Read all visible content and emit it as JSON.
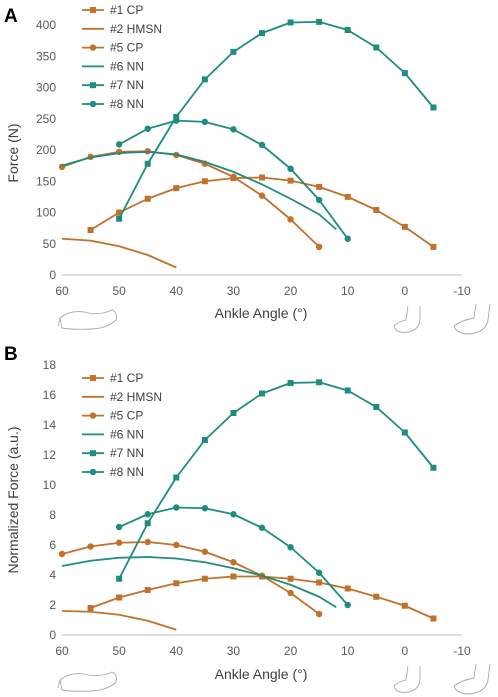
{
  "chart_data": [
    {
      "panel": "A",
      "type": "line",
      "xlabel": "Ankle Angle (°)",
      "ylabel": "Force (N)",
      "xlim": [
        60,
        -10
      ],
      "ylim": [
        0,
        400
      ],
      "xticks": [
        "60",
        "50",
        "40",
        "30",
        "20",
        "10",
        "0",
        "-10"
      ],
      "yticks": [
        "0",
        "50",
        "100",
        "150",
        "200",
        "250",
        "300",
        "350",
        "400"
      ],
      "xtick_values": [
        60,
        50,
        40,
        30,
        20,
        10,
        0,
        -10
      ],
      "ytick_values": [
        0,
        50,
        100,
        150,
        200,
        250,
        300,
        350,
        400
      ],
      "legend_position": "top-left",
      "series": [
        {
          "name": "#1 CP",
          "color": "#C0712C",
          "marker": "square",
          "points": [
            [
              55,
              72
            ],
            [
              50,
              100
            ],
            [
              45,
              122
            ],
            [
              40,
              139
            ],
            [
              35,
              150
            ],
            [
              30,
              155
            ],
            [
              25,
              156
            ],
            [
              20,
              151
            ],
            [
              15,
              141
            ],
            [
              10,
              125
            ],
            [
              5,
              104
            ],
            [
              0,
              77
            ],
            [
              -5,
              45
            ]
          ]
        },
        {
          "name": "#2 HMSN",
          "color": "#C0712C",
          "marker": "none",
          "points": [
            [
              60,
              58
            ],
            [
              55,
              55
            ],
            [
              50,
              46
            ],
            [
              45,
              32
            ],
            [
              40,
              12
            ]
          ]
        },
        {
          "name": "#5 CP",
          "color": "#C0712C",
          "marker": "circle",
          "points": [
            [
              60,
              173
            ],
            [
              55,
              189
            ],
            [
              50,
              197
            ],
            [
              45,
              198
            ],
            [
              40,
              192
            ],
            [
              35,
              178
            ],
            [
              30,
              157
            ],
            [
              25,
              127
            ],
            [
              20,
              89
            ],
            [
              15,
              45
            ]
          ]
        },
        {
          "name": "#6 NN",
          "color": "#1E8C7E",
          "marker": "none",
          "points": [
            [
              60,
              175
            ],
            [
              55,
              188
            ],
            [
              50,
              195
            ],
            [
              45,
              197
            ],
            [
              40,
              193
            ],
            [
              35,
              181
            ],
            [
              30,
              165
            ],
            [
              25,
              145
            ],
            [
              20,
              122
            ],
            [
              15,
              97
            ],
            [
              12,
              73
            ]
          ]
        },
        {
          "name": "#7 NN",
          "color": "#1E8C7E",
          "marker": "square",
          "points": [
            [
              50,
              90
            ],
            [
              45,
              178
            ],
            [
              40,
              253
            ],
            [
              35,
              313
            ],
            [
              30,
              357
            ],
            [
              25,
              387
            ],
            [
              20,
              404
            ],
            [
              15,
              405
            ],
            [
              10,
              392
            ],
            [
              5,
              364
            ],
            [
              0,
              323
            ],
            [
              -5,
              268
            ]
          ]
        },
        {
          "name": "#8 NN",
          "color": "#1E8C7E",
          "marker": "circle",
          "points": [
            [
              50,
              209
            ],
            [
              45,
              234
            ],
            [
              40,
              247
            ],
            [
              35,
              245
            ],
            [
              30,
              233
            ],
            [
              25,
              208
            ],
            [
              20,
              170
            ],
            [
              15,
              120
            ],
            [
              10,
              58
            ]
          ]
        }
      ]
    },
    {
      "panel": "B",
      "type": "line",
      "xlabel": "Ankle Angle (°)",
      "ylabel": "Normalized Force (a.u.)",
      "xlim": [
        60,
        -10
      ],
      "ylim": [
        0,
        18
      ],
      "xticks": [
        "60",
        "50",
        "40",
        "30",
        "20",
        "10",
        "0",
        "-10"
      ],
      "yticks": [
        "0",
        "2",
        "4",
        "6",
        "8",
        "10",
        "12",
        "14",
        "16",
        "18"
      ],
      "xtick_values": [
        60,
        50,
        40,
        30,
        20,
        10,
        0,
        -10
      ],
      "ytick_values": [
        0,
        2,
        4,
        6,
        8,
        10,
        12,
        14,
        16,
        18
      ],
      "legend_position": "top-left",
      "series": [
        {
          "name": "#1 CP",
          "color": "#C0712C",
          "marker": "square",
          "points": [
            [
              55,
              1.8
            ],
            [
              50,
              2.5
            ],
            [
              45,
              3.0
            ],
            [
              40,
              3.45
            ],
            [
              35,
              3.75
            ],
            [
              30,
              3.9
            ],
            [
              25,
              3.9
            ],
            [
              20,
              3.75
            ],
            [
              15,
              3.5
            ],
            [
              10,
              3.1
            ],
            [
              5,
              2.55
            ],
            [
              0,
              1.95
            ],
            [
              -5,
              1.1
            ]
          ]
        },
        {
          "name": "#2 HMSN",
          "color": "#C0712C",
          "marker": "none",
          "points": [
            [
              60,
              1.6
            ],
            [
              55,
              1.55
            ],
            [
              50,
              1.35
            ],
            [
              45,
              0.95
            ],
            [
              40,
              0.35
            ]
          ]
        },
        {
          "name": "#5 CP",
          "color": "#C0712C",
          "marker": "circle",
          "points": [
            [
              60,
              5.4
            ],
            [
              55,
              5.9
            ],
            [
              50,
              6.15
            ],
            [
              45,
              6.2
            ],
            [
              40,
              6.0
            ],
            [
              35,
              5.55
            ],
            [
              30,
              4.85
            ],
            [
              25,
              3.95
            ],
            [
              20,
              2.8
            ],
            [
              15,
              1.4
            ]
          ]
        },
        {
          "name": "#6 NN",
          "color": "#1E8C7E",
          "marker": "none",
          "points": [
            [
              60,
              4.6
            ],
            [
              55,
              4.95
            ],
            [
              50,
              5.15
            ],
            [
              45,
              5.2
            ],
            [
              40,
              5.1
            ],
            [
              35,
              4.85
            ],
            [
              30,
              4.45
            ],
            [
              25,
              3.95
            ],
            [
              20,
              3.35
            ],
            [
              15,
              2.55
            ],
            [
              12,
              1.85
            ]
          ]
        },
        {
          "name": "#7 NN",
          "color": "#1E8C7E",
          "marker": "square",
          "points": [
            [
              50,
              3.75
            ],
            [
              45,
              7.45
            ],
            [
              40,
              10.5
            ],
            [
              35,
              13.0
            ],
            [
              30,
              14.8
            ],
            [
              25,
              16.1
            ],
            [
              20,
              16.8
            ],
            [
              15,
              16.85
            ],
            [
              10,
              16.3
            ],
            [
              5,
              15.2
            ],
            [
              0,
              13.5
            ],
            [
              -5,
              11.15
            ]
          ]
        },
        {
          "name": "#8 NN",
          "color": "#1E8C7E",
          "marker": "circle",
          "points": [
            [
              50,
              7.2
            ],
            [
              45,
              8.05
            ],
            [
              40,
              8.5
            ],
            [
              35,
              8.45
            ],
            [
              30,
              8.05
            ],
            [
              25,
              7.15
            ],
            [
              20,
              5.85
            ],
            [
              15,
              4.15
            ],
            [
              10,
              2.0
            ]
          ]
        }
      ]
    }
  ]
}
